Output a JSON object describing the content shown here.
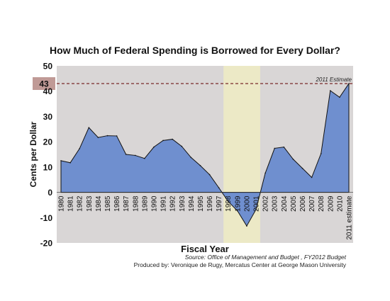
{
  "chart_data": {
    "type": "area",
    "title": "How Much of Federal Spending is Borrowed for Every Dollar?",
    "xlabel": "Fiscal Year",
    "ylabel": "Cents per Dollar",
    "ylim": [
      -20,
      50
    ],
    "yticks": [
      -20,
      -10,
      0,
      10,
      20,
      30,
      40,
      50
    ],
    "categories": [
      "1980",
      "1981",
      "1982",
      "1983",
      "1984",
      "1985",
      "1986",
      "1987",
      "1988",
      "1989",
      "1990",
      "1991",
      "1992",
      "1993",
      "1994",
      "1995",
      "1996",
      "1997",
      "1998",
      "1999",
      "2000",
      "2001",
      "2002",
      "2003",
      "2004",
      "2005",
      "2006",
      "2007",
      "2008",
      "2009",
      "2010",
      "2011 estimate"
    ],
    "values": [
      12.5,
      11.7,
      17.3,
      25.6,
      21.7,
      22.4,
      22.3,
      15.0,
      14.6,
      13.4,
      17.9,
      20.5,
      21.0,
      18.2,
      13.8,
      10.6,
      7.0,
      1.8,
      -3.6,
      -7.3,
      -13.3,
      -6.8,
      7.6,
      17.4,
      17.9,
      13.1,
      9.5,
      5.9,
      15.3,
      40.2,
      37.6,
      43.0
    ],
    "reference_line": {
      "value": 43,
      "label": "2011 Estimate",
      "axis_badge": "43"
    },
    "highlight_band": {
      "from": "1998",
      "to": "2001"
    },
    "grid": false,
    "legend": "none",
    "colors": {
      "plot_bg": "#d9d6d6",
      "area": "#6f8fcf",
      "band": "#ece9c6",
      "ref_line": "#7a2a2a",
      "badge": "#c09a96"
    }
  },
  "footer": {
    "source": "Source: Office of Management and Budget , FY2012 Budget",
    "credit": "Produced by: Veronique de Rugy, Mercatus Center at George Mason University"
  }
}
